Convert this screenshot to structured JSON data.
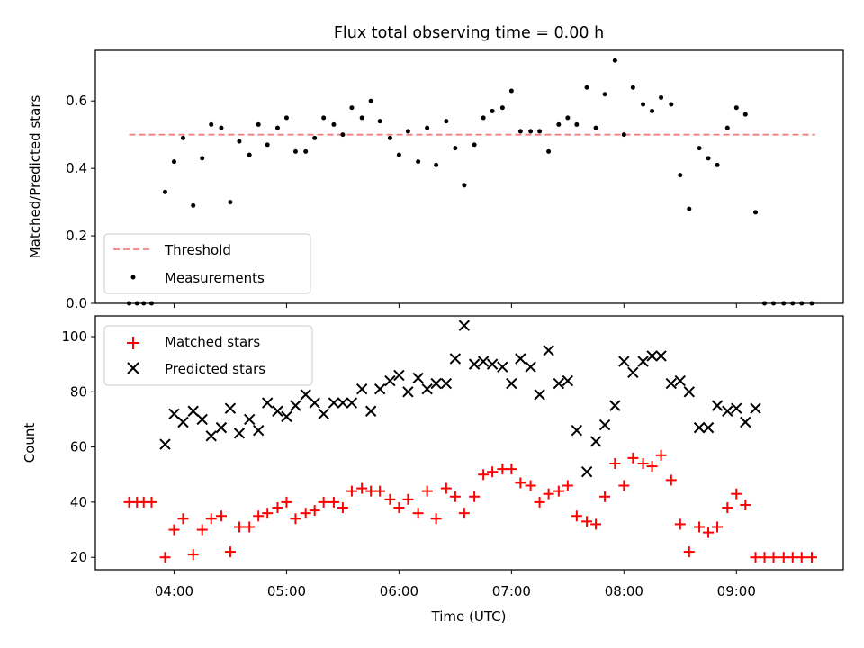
{
  "chart_data": [
    {
      "type": "scatter",
      "title": "Flux total observing time = 0.00 h",
      "ylabel": "Matched/Predicted stars",
      "ylim": [
        0,
        0.75
      ],
      "yticks": [
        0.0,
        0.2,
        0.4,
        0.6
      ],
      "yticklabels": [
        "0.0",
        "0.2",
        "0.4",
        "0.6"
      ],
      "xlim": [
        3.3,
        9.95
      ],
      "grid": false,
      "legend": "lower-left",
      "threshold": {
        "name": "Threshold",
        "value": 0.5,
        "x": [
          3.6,
          9.7
        ],
        "color": "#f08080"
      },
      "series": [
        {
          "name": "Measurements",
          "color": "#000000",
          "x": [
            3.6,
            3.67,
            3.73,
            3.8,
            3.92,
            4.0,
            4.08,
            4.17,
            4.25,
            4.33,
            4.42,
            4.5,
            4.58,
            4.67,
            4.75,
            4.83,
            4.92,
            5.0,
            5.08,
            5.17,
            5.25,
            5.33,
            5.42,
            5.5,
            5.58,
            5.67,
            5.75,
            5.83,
            5.92,
            6.0,
            6.08,
            6.17,
            6.25,
            6.33,
            6.42,
            6.5,
            6.58,
            6.67,
            6.75,
            6.83,
            6.92,
            7.0,
            7.08,
            7.17,
            7.25,
            7.33,
            7.42,
            7.5,
            7.58,
            7.67,
            7.75,
            7.83,
            7.92,
            8.0,
            8.08,
            8.17,
            8.25,
            8.33,
            8.42,
            8.5,
            8.58,
            8.67,
            8.75,
            8.83,
            8.92,
            9.0,
            9.08,
            9.17,
            9.25,
            9.33,
            9.42,
            9.5,
            9.58,
            9.67
          ],
          "y": [
            0.0,
            0.0,
            0.0,
            0.0,
            0.33,
            0.42,
            0.49,
            0.29,
            0.43,
            0.53,
            0.52,
            0.3,
            0.48,
            0.44,
            0.53,
            0.47,
            0.52,
            0.55,
            0.45,
            0.45,
            0.49,
            0.55,
            0.53,
            0.5,
            0.58,
            0.55,
            0.6,
            0.54,
            0.49,
            0.44,
            0.51,
            0.42,
            0.52,
            0.41,
            0.54,
            0.46,
            0.35,
            0.47,
            0.55,
            0.57,
            0.58,
            0.63,
            0.51,
            0.51,
            0.51,
            0.45,
            0.53,
            0.55,
            0.53,
            0.64,
            0.52,
            0.62,
            0.72,
            0.5,
            0.64,
            0.59,
            0.57,
            0.61,
            0.59,
            0.38,
            0.28,
            0.46,
            0.43,
            0.41,
            0.52,
            0.58,
            0.56,
            0.27,
            0.0,
            0.0,
            0.0,
            0.0,
            0.0,
            0.0
          ]
        }
      ]
    },
    {
      "type": "scatter",
      "xlabel": "Time (UTC)",
      "ylabel": "Count",
      "ylim": [
        15.5,
        107.5
      ],
      "yticks": [
        20,
        40,
        60,
        80,
        100
      ],
      "yticklabels": [
        "20",
        "40",
        "60",
        "80",
        "100"
      ],
      "xlim": [
        3.3,
        9.95
      ],
      "xticks": [
        4,
        5,
        6,
        7,
        8,
        9
      ],
      "xticklabels": [
        "04:00",
        "05:00",
        "06:00",
        "07:00",
        "08:00",
        "09:00"
      ],
      "grid": false,
      "legend": "upper-left",
      "series": [
        {
          "name": "Matched stars",
          "marker": "plus",
          "color": "#ff0000",
          "x": [
            3.6,
            3.67,
            3.73,
            3.8,
            3.92,
            4.0,
            4.08,
            4.17,
            4.25,
            4.33,
            4.42,
            4.5,
            4.58,
            4.67,
            4.75,
            4.83,
            4.92,
            5.0,
            5.08,
            5.17,
            5.25,
            5.33,
            5.42,
            5.5,
            5.58,
            5.67,
            5.75,
            5.83,
            5.92,
            6.0,
            6.08,
            6.17,
            6.25,
            6.33,
            6.42,
            6.5,
            6.58,
            6.67,
            6.75,
            6.83,
            6.92,
            7.0,
            7.08,
            7.17,
            7.25,
            7.33,
            7.42,
            7.5,
            7.58,
            7.67,
            7.75,
            7.83,
            7.92,
            8.0,
            8.08,
            8.17,
            8.25,
            8.33,
            8.42,
            8.5,
            8.58,
            8.67,
            8.75,
            8.83,
            8.92,
            9.0,
            9.08,
            9.17,
            9.25,
            9.33,
            9.42,
            9.5,
            9.58,
            9.67
          ],
          "y": [
            40,
            40,
            40,
            40,
            20,
            30,
            34,
            21,
            30,
            34,
            35,
            22,
            31,
            31,
            35,
            36,
            38,
            40,
            34,
            36,
            37,
            40,
            40,
            38,
            44,
            45,
            44,
            44,
            41,
            38,
            41,
            36,
            44,
            34,
            45,
            42,
            36,
            42,
            50,
            51,
            52,
            52,
            47,
            46,
            40,
            43,
            44,
            46,
            35,
            33,
            32,
            42,
            54,
            46,
            56,
            54,
            53,
            57,
            48,
            32,
            22,
            31,
            29,
            31,
            38,
            43,
            39,
            20,
            20,
            20,
            20,
            20,
            20,
            20
          ]
        },
        {
          "name": "Predicted stars",
          "marker": "x",
          "color": "#000000",
          "x": [
            3.92,
            4.0,
            4.08,
            4.17,
            4.25,
            4.33,
            4.42,
            4.5,
            4.58,
            4.67,
            4.75,
            4.83,
            4.92,
            5.0,
            5.08,
            5.17,
            5.25,
            5.33,
            5.42,
            5.5,
            5.58,
            5.67,
            5.75,
            5.83,
            5.92,
            6.0,
            6.08,
            6.17,
            6.25,
            6.33,
            6.42,
            6.5,
            6.58,
            6.67,
            6.75,
            6.83,
            6.92,
            7.0,
            7.08,
            7.17,
            7.25,
            7.33,
            7.42,
            7.5,
            7.58,
            7.67,
            7.75,
            7.83,
            7.92,
            8.0,
            8.08,
            8.17,
            8.25,
            8.33,
            8.42,
            8.5,
            8.58,
            8.67,
            8.75,
            8.83,
            8.92,
            9.0,
            9.08,
            9.17
          ],
          "y": [
            61,
            72,
            69,
            73,
            70,
            64,
            67,
            74,
            65,
            70,
            66,
            76,
            73,
            71,
            75,
            79,
            76,
            72,
            76,
            76,
            76,
            81,
            73,
            81,
            84,
            86,
            80,
            85,
            81,
            83,
            83,
            92,
            104,
            90,
            91,
            90,
            89,
            83,
            92,
            89,
            79,
            95,
            83,
            84,
            66,
            51,
            62,
            68,
            75,
            91,
            87,
            91,
            93,
            93,
            83,
            84,
            80,
            67,
            67,
            75,
            73,
            74,
            69,
            74
          ]
        }
      ]
    }
  ]
}
